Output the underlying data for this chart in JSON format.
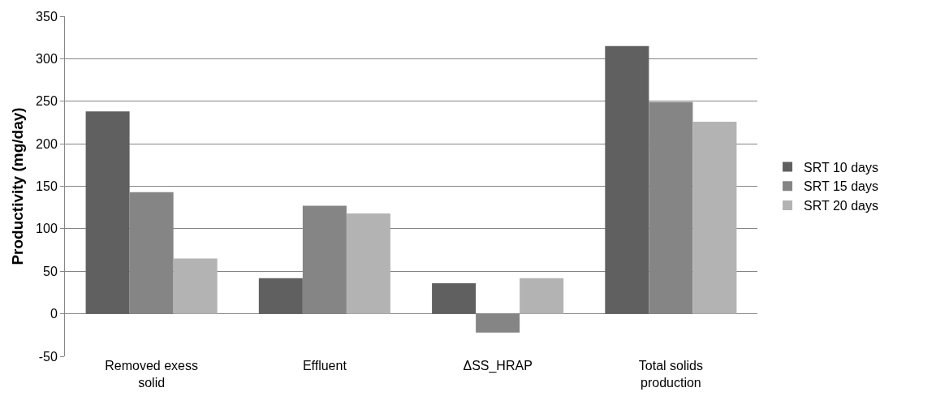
{
  "chart_data": {
    "type": "bar",
    "ylabel": "Productivity (mg/day)",
    "categories": [
      "Removed exess solid",
      "Effluent",
      "ΔSS_HRAP",
      "Total solids production"
    ],
    "series": [
      {
        "name": "SRT 10 days",
        "color": "#606060",
        "values": [
          238,
          42,
          36,
          315
        ]
      },
      {
        "name": "SRT 15 days",
        "color": "#858585",
        "values": [
          143,
          127,
          -22,
          249
        ]
      },
      {
        "name": "SRT 20 days",
        "color": "#b3b3b3",
        "values": [
          65,
          118,
          42,
          226
        ]
      }
    ],
    "ylim": [
      -50,
      350
    ],
    "yticks": [
      -50,
      0,
      50,
      100,
      150,
      200,
      250,
      300,
      350
    ],
    "grid": "y",
    "legend": "right"
  }
}
